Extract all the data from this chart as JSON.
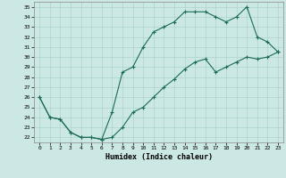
{
  "xlabel": "Humidex (Indice chaleur)",
  "bg_color": "#cce8e4",
  "line_color": "#1a6b5a",
  "grid_color": "#aad4cc",
  "xlim": [
    -0.5,
    23.5
  ],
  "ylim": [
    21.5,
    35.5
  ],
  "xticks": [
    0,
    1,
    2,
    3,
    4,
    5,
    6,
    7,
    8,
    9,
    10,
    11,
    12,
    13,
    14,
    15,
    16,
    17,
    18,
    19,
    20,
    21,
    22,
    23
  ],
  "yticks": [
    22,
    23,
    24,
    25,
    26,
    27,
    28,
    29,
    30,
    31,
    32,
    33,
    34,
    35
  ],
  "line1_x": [
    0,
    1,
    2,
    3,
    4,
    5,
    6,
    7,
    8,
    9,
    10,
    11,
    12,
    13,
    14,
    15,
    16,
    17,
    18,
    19,
    20,
    21,
    22,
    23
  ],
  "line1_y": [
    26.0,
    24.0,
    23.8,
    22.5,
    22.0,
    22.0,
    21.8,
    24.5,
    28.5,
    29.0,
    31.0,
    32.5,
    33.0,
    33.5,
    34.5,
    34.5,
    34.5,
    34.0,
    33.5,
    34.0,
    35.0,
    32.0,
    31.5,
    30.5
  ],
  "line2_x": [
    0,
    1,
    2,
    3,
    4,
    5,
    6,
    7,
    8,
    9,
    10,
    11,
    12,
    13,
    14,
    15,
    16,
    17,
    18,
    19,
    20,
    21,
    22,
    23
  ],
  "line2_y": [
    26.0,
    24.0,
    23.8,
    22.5,
    22.0,
    22.0,
    21.8,
    22.0,
    23.0,
    24.5,
    25.0,
    26.0,
    27.0,
    27.8,
    28.8,
    29.5,
    29.8,
    28.5,
    29.0,
    29.5,
    30.0,
    29.8,
    30.0,
    30.5
  ]
}
